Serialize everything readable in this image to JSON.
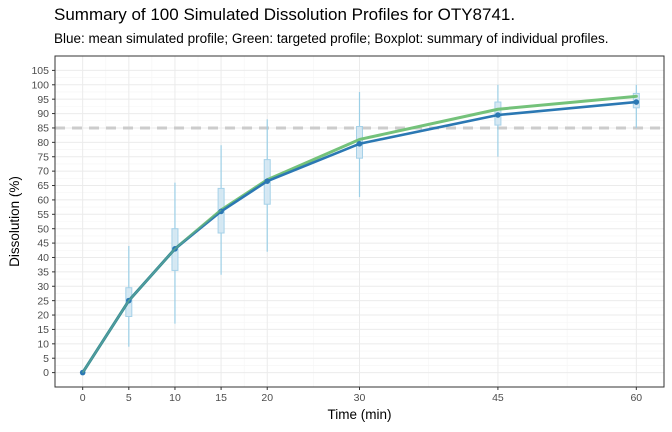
{
  "title": "Summary of 100 Simulated Dissolution Profiles for OTY8741.",
  "subtitle": "Blue: mean simulated profile; Green: targeted profile; Boxplot: summary of individual profiles.",
  "colors": {
    "mean": "#2b78b3",
    "target": "#74c27a",
    "box_fill": "#cfe5f2",
    "box_stroke": "#a6d1e8",
    "whisker": "#9ccfe6",
    "reference": "#cccccc",
    "grid_major": "#ebebeb",
    "grid_minor": "#f5f5f5",
    "panel_border": "#333333"
  },
  "chart_data": {
    "type": "line",
    "xlabel": "Time (min)",
    "ylabel": "Dissolution (%)",
    "xlim": [
      -3,
      63
    ],
    "ylim": [
      -5,
      110
    ],
    "x_ticks": [
      0,
      5,
      10,
      15,
      20,
      30,
      45,
      60
    ],
    "y_ticks": [
      0,
      5,
      10,
      15,
      20,
      25,
      30,
      35,
      40,
      45,
      50,
      55,
      60,
      65,
      70,
      75,
      80,
      85,
      90,
      95,
      100,
      105
    ],
    "grid": true,
    "legend": "none",
    "reference_line": {
      "y": 85,
      "style": "dashed"
    },
    "series": [
      {
        "x": [
          0,
          5,
          10,
          15,
          20,
          30,
          45,
          60
        ],
        "values": [
          0,
          25,
          43,
          56.5,
          67,
          81,
          91.5,
          96
        ]
      },
      {
        "x": [
          0,
          5,
          10,
          15,
          20,
          30,
          45,
          60
        ],
        "values": [
          0,
          25,
          43,
          56,
          66.5,
          79.5,
          89.5,
          94
        ]
      }
    ],
    "boxplots": [
      {
        "x": 5,
        "min": 9,
        "q1": 19.5,
        "median": 25,
        "q3": 29.5,
        "max": 44
      },
      {
        "x": 10,
        "min": 17,
        "q1": 35.5,
        "median": 43,
        "q3": 50,
        "max": 66
      },
      {
        "x": 15,
        "min": 34,
        "q1": 48.5,
        "median": 56,
        "q3": 64,
        "max": 79
      },
      {
        "x": 20,
        "min": 42,
        "q1": 58.5,
        "median": 66.5,
        "q3": 74,
        "max": 88
      },
      {
        "x": 30,
        "min": 61,
        "q1": 74.5,
        "median": 80,
        "q3": 85.5,
        "max": 97.5
      },
      {
        "x": 45,
        "min": 75,
        "q1": 86,
        "median": 89.5,
        "q3": 94,
        "max": 100
      },
      {
        "x": 60,
        "min": 85,
        "q1": 92,
        "median": 94,
        "q3": 97,
        "max": 100
      }
    ]
  }
}
